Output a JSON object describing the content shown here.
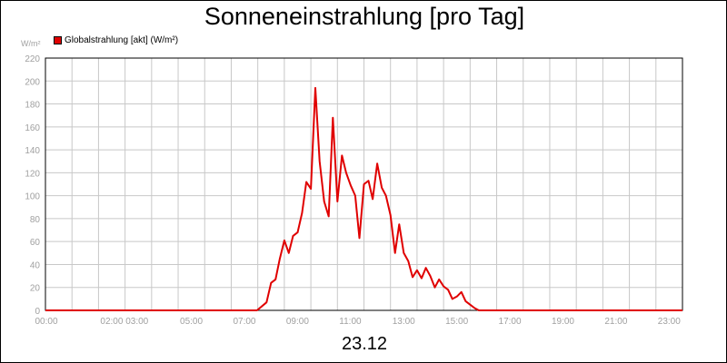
{
  "title": "Sonneneinstrahlung [pro Tag]",
  "subtitle": "23.12",
  "unit": "W/m²",
  "chart_data": {
    "type": "line",
    "title": "Sonneneinstrahlung [pro Tag]",
    "subtitle": "23.12",
    "ylabel": "W/m²",
    "ylim": [
      0,
      220
    ],
    "yticks": [
      0,
      20,
      40,
      60,
      80,
      100,
      120,
      140,
      160,
      180,
      200,
      220
    ],
    "xlim": [
      0,
      24
    ],
    "x_unit": "hours",
    "xtick_labels": [
      {
        "x": 0,
        "label": "00:00"
      },
      {
        "x": 2,
        "label": "02:00 03:00"
      },
      {
        "x": 5,
        "label": "05:00"
      },
      {
        "x": 7,
        "label": "07:00"
      },
      {
        "x": 9,
        "label": "09:00"
      },
      {
        "x": 11,
        "label": "11:00"
      },
      {
        "x": 13,
        "label": "13:00"
      },
      {
        "x": 15,
        "label": "15:00"
      },
      {
        "x": 17,
        "label": "17:00"
      },
      {
        "x": 19,
        "label": "19:00"
      },
      {
        "x": 21,
        "label": "21:00"
      },
      {
        "x": 23,
        "label": "23:00"
      }
    ],
    "grid": true,
    "legend": "top-left",
    "series": [
      {
        "name": "Globalstrahlung [akt] (W/m²)",
        "color": "#e00000",
        "x": [
          0,
          7.97,
          8.33,
          8.5,
          8.67,
          8.83,
          9.0,
          9.17,
          9.33,
          9.5,
          9.67,
          9.83,
          10.0,
          10.17,
          10.33,
          10.5,
          10.67,
          10.83,
          11.0,
          11.17,
          11.33,
          11.5,
          11.67,
          11.83,
          12.0,
          12.17,
          12.33,
          12.5,
          12.67,
          12.83,
          13.0,
          13.17,
          13.33,
          13.5,
          13.67,
          13.83,
          14.0,
          14.17,
          14.33,
          14.5,
          14.67,
          14.83,
          15.0,
          15.17,
          15.33,
          15.5,
          15.67,
          15.83,
          16.0,
          16.17,
          16.33,
          16.5,
          16.67,
          17.0,
          24
        ],
        "y": [
          0,
          0,
          7,
          24,
          27,
          45,
          61,
          50,
          65,
          68,
          85,
          112,
          106,
          194,
          130,
          95,
          82,
          168,
          95,
          135,
          120,
          109,
          100,
          63,
          110,
          113,
          97,
          128,
          107,
          100,
          83,
          50,
          75,
          50,
          43,
          29,
          35,
          28,
          37,
          30,
          20,
          27,
          21,
          18,
          10,
          12,
          16,
          8,
          5,
          2,
          0,
          0,
          0,
          0,
          0
        ]
      }
    ]
  },
  "legend": {
    "label": "Globalstrahlung [akt] (W/m²)",
    "color": "#e00000"
  }
}
